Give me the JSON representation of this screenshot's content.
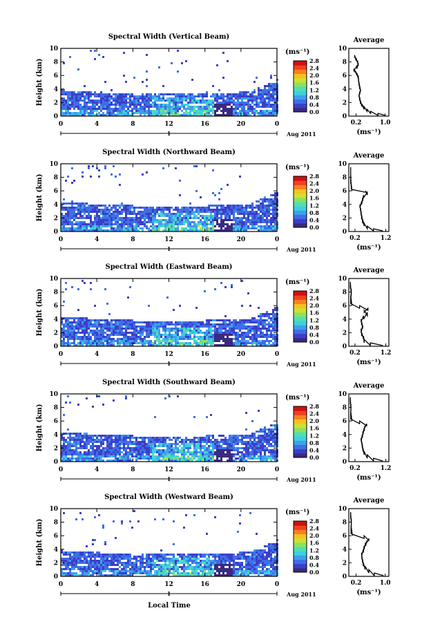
{
  "figure": {
    "month_label": "Aug 2011",
    "date_marker": "1",
    "xlabel": "Local Time",
    "ylabel": "Height (km)",
    "colorbar_unit": "(ms⁻¹)",
    "average_title": "Average",
    "average_unit": "(ms⁻¹)"
  },
  "colors": {
    "colormap": [
      "#3a2a80",
      "#3b3fc8",
      "#3f6ee6",
      "#3fa0ec",
      "#3fd0e0",
      "#4fe0b0",
      "#8fe060",
      "#d0e030",
      "#f8c020",
      "#f88020",
      "#f04020",
      "#d01010"
    ],
    "frame": "#000000"
  },
  "chart_data": [
    {
      "type": "heatmap",
      "title": "Spectral Width (Vertical Beam)",
      "x_ticks": [
        "0",
        "4",
        "8",
        "12",
        "16",
        "20",
        "0"
      ],
      "y_ticks": [
        "0",
        "2",
        "4",
        "6",
        "8",
        "10"
      ],
      "xlim": [
        0,
        24
      ],
      "ylim": [
        0,
        10
      ],
      "colorbar_ticks": [
        "0.0",
        "0.4",
        "0.8",
        "1.2",
        "1.6",
        "2.0",
        "2.4",
        "2.8"
      ],
      "colorbar_range": [
        0,
        2.8
      ],
      "layer_top_km": 4.0,
      "sparse_top_km": 10,
      "average_profile": {
        "x_ticks": [
          "0.2",
          "1.0"
        ],
        "xlim": [
          0,
          1.1
        ],
        "y_ticks": [
          "0",
          "2",
          "4",
          "6",
          "8",
          "10"
        ],
        "ylim": [
          0,
          10
        ],
        "x": [
          1.0,
          0.8,
          0.6,
          0.5,
          0.42,
          0.36,
          0.32,
          0.3,
          0.28,
          0.3,
          0.32,
          0.3,
          0.28,
          0.27,
          0.26,
          0.22,
          0.18,
          0.14,
          0.22,
          0.26,
          0.24,
          0.2,
          0.16
        ],
        "y": [
          0.1,
          0.4,
          0.7,
          1.0,
          1.4,
          1.8,
          2.3,
          2.8,
          3.2,
          3.6,
          4.0,
          4.5,
          5.0,
          5.5,
          6.0,
          6.4,
          6.7,
          7.0,
          7.4,
          7.8,
          8.2,
          8.6,
          9.0
        ]
      }
    },
    {
      "type": "heatmap",
      "title": "Spectral Width (Northward Beam)",
      "x_ticks": [
        "0",
        "4",
        "8",
        "12",
        "16",
        "20",
        "0"
      ],
      "y_ticks": [
        "0",
        "2",
        "4",
        "6",
        "8",
        "10"
      ],
      "xlim": [
        0,
        24
      ],
      "ylim": [
        0,
        10
      ],
      "colorbar_ticks": [
        "0.0",
        "0.4",
        "0.8",
        "1.2",
        "1.6",
        "2.0",
        "2.4",
        "2.8"
      ],
      "colorbar_range": [
        0,
        2.8
      ],
      "layer_top_km": 4.5,
      "sparse_top_km": 10,
      "average_profile": {
        "x_ticks": [
          "0.2",
          "1.2"
        ],
        "xlim": [
          0,
          1.3
        ],
        "y_ticks": [
          "0",
          "2",
          "4",
          "6",
          "8",
          "10"
        ],
        "ylim": [
          0,
          10
        ],
        "x": [
          1.1,
          0.8,
          0.6,
          0.5,
          0.45,
          0.42,
          0.4,
          0.38,
          0.36,
          0.42,
          0.45,
          0.48,
          0.6,
          0.55,
          0.1,
          0.08,
          0.06,
          0.06
        ],
        "y": [
          0.1,
          0.4,
          0.8,
          1.2,
          1.8,
          2.4,
          3.0,
          3.5,
          4.0,
          4.5,
          5.0,
          5.4,
          5.8,
          6.0,
          6.2,
          7.0,
          8.5,
          9.5
        ]
      }
    },
    {
      "type": "heatmap",
      "title": "Spectral Width (Eastward Beam)",
      "x_ticks": [
        "0",
        "4",
        "8",
        "12",
        "16",
        "20",
        "0"
      ],
      "y_ticks": [
        "0",
        "2",
        "4",
        "6",
        "8",
        "10"
      ],
      "xlim": [
        0,
        24
      ],
      "ylim": [
        0,
        10
      ],
      "colorbar_ticks": [
        "0.0",
        "0.4",
        "0.8",
        "1.2",
        "1.6",
        "2.0",
        "2.4",
        "2.8"
      ],
      "colorbar_range": [
        0,
        2.8
      ],
      "layer_top_km": 4.5,
      "sparse_top_km": 10,
      "average_profile": {
        "x_ticks": [
          "0.2",
          "1.2"
        ],
        "xlim": [
          0,
          1.3
        ],
        "y_ticks": [
          "0",
          "2",
          "4",
          "6",
          "8",
          "10"
        ],
        "ylim": [
          0,
          10
        ],
        "x": [
          1.1,
          0.7,
          0.5,
          0.48,
          0.42,
          0.4,
          0.45,
          0.42,
          0.4,
          0.48,
          0.6,
          0.5,
          0.62,
          0.35,
          0.1,
          0.06,
          0.08,
          0.05
        ],
        "y": [
          0.1,
          0.5,
          1.0,
          1.5,
          2.0,
          2.6,
          3.1,
          3.6,
          4.0,
          4.5,
          5.0,
          5.3,
          5.6,
          6.0,
          6.2,
          7.5,
          8.5,
          9.5
        ]
      }
    },
    {
      "type": "heatmap",
      "title": "Spectral Width (Southward Beam)",
      "x_ticks": [
        "0",
        "4",
        "8",
        "12",
        "16",
        "20",
        "0"
      ],
      "y_ticks": [
        "0",
        "2",
        "4",
        "6",
        "8",
        "10"
      ],
      "xlim": [
        0,
        24
      ],
      "ylim": [
        0,
        10
      ],
      "colorbar_ticks": [
        "0.0",
        "0.4",
        "0.8",
        "1.2",
        "1.6",
        "2.0",
        "2.4",
        "2.8"
      ],
      "colorbar_range": [
        0,
        2.8
      ],
      "layer_top_km": 4.5,
      "sparse_top_km": 10,
      "average_profile": {
        "x_ticks": [
          "0.2",
          "1.2"
        ],
        "xlim": [
          0,
          1.3
        ],
        "y_ticks": [
          "0",
          "2",
          "4",
          "6",
          "8",
          "10"
        ],
        "ylim": [
          0,
          10
        ],
        "x": [
          1.1,
          0.8,
          0.6,
          0.5,
          0.46,
          0.44,
          0.42,
          0.4,
          0.44,
          0.46,
          0.5,
          0.52,
          0.58,
          0.35,
          0.1,
          0.06,
          0.07,
          0.05
        ],
        "y": [
          0.1,
          0.5,
          1.0,
          1.5,
          2.0,
          2.6,
          3.0,
          3.5,
          4.0,
          4.5,
          5.0,
          5.3,
          5.6,
          6.0,
          6.2,
          7.5,
          8.5,
          9.5
        ]
      }
    },
    {
      "type": "heatmap",
      "title": "Spectral Width (Westward Beam)",
      "x_ticks": [
        "0",
        "4",
        "8",
        "12",
        "16",
        "20",
        "0"
      ],
      "y_ticks": [
        "0",
        "2",
        "4",
        "6",
        "8",
        "10"
      ],
      "xlim": [
        0,
        24
      ],
      "ylim": [
        0,
        10
      ],
      "colorbar_ticks": [
        "0.0",
        "0.4",
        "0.8",
        "1.2",
        "1.6",
        "2.0",
        "2.4",
        "2.8"
      ],
      "colorbar_range": [
        0,
        2.8
      ],
      "layer_top_km": 4.0,
      "sparse_top_km": 10,
      "average_profile": {
        "x_ticks": [
          "0.2",
          "1.0"
        ],
        "xlim": [
          0,
          1.1
        ],
        "y_ticks": [
          "0",
          "2",
          "4",
          "6",
          "8",
          "10"
        ],
        "ylim": [
          0,
          10
        ],
        "x": [
          0.95,
          0.7,
          0.55,
          0.45,
          0.4,
          0.38,
          0.36,
          0.35,
          0.4,
          0.42,
          0.46,
          0.5,
          0.55,
          0.42,
          0.1,
          0.06,
          0.07,
          0.05
        ],
        "y": [
          0.1,
          0.5,
          1.0,
          1.5,
          2.0,
          2.5,
          3.0,
          3.5,
          4.0,
          4.5,
          5.0,
          5.3,
          5.6,
          6.0,
          6.2,
          7.5,
          8.5,
          9.5
        ]
      }
    }
  ]
}
